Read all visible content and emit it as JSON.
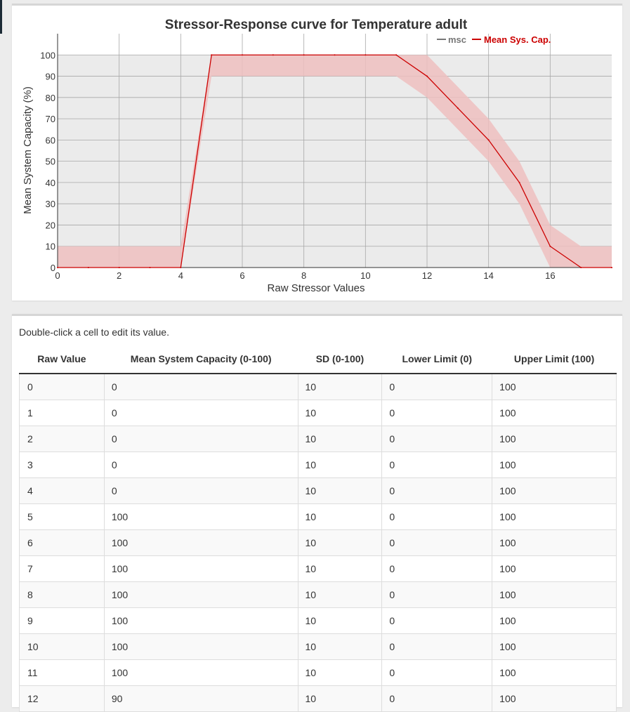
{
  "chart_data": {
    "type": "line",
    "title": "Stressor-Response curve for Temperature adult",
    "xlabel": "Raw Stressor Values",
    "ylabel": "Mean System Capacity (%)",
    "xlim": [
      0,
      18
    ],
    "ylim": [
      0,
      110
    ],
    "x_ticks": [
      0,
      2,
      4,
      6,
      8,
      10,
      12,
      14,
      16
    ],
    "y_ticks": [
      0,
      10,
      20,
      30,
      40,
      50,
      60,
      70,
      80,
      90,
      100
    ],
    "shaded_region_y": [
      0,
      100
    ],
    "grid": true,
    "legend_placement": "top-right",
    "legend": [
      {
        "name": "msc",
        "color": "#777777"
      },
      {
        "name": "Mean Sys. Cap.",
        "color": "#cc0000"
      }
    ],
    "series": [
      {
        "name": "Mean Sys. Cap.",
        "color": "#cc0000",
        "x": [
          0,
          1,
          2,
          3,
          4,
          5,
          6,
          7,
          8,
          9,
          10,
          11,
          12,
          13,
          14,
          15,
          16,
          17,
          18
        ],
        "values": [
          0,
          0,
          0,
          0,
          0,
          100,
          100,
          100,
          100,
          100,
          100,
          100,
          90,
          75,
          60,
          40,
          10,
          0,
          0
        ],
        "band_lower": [
          0,
          0,
          0,
          0,
          0,
          90,
          90,
          90,
          90,
          90,
          90,
          90,
          80,
          65,
          50,
          30,
          0,
          0,
          0
        ],
        "band_upper": [
          10,
          10,
          10,
          10,
          10,
          100,
          100,
          100,
          100,
          100,
          100,
          100,
          100,
          85,
          70,
          50,
          20,
          10,
          10
        ]
      }
    ]
  },
  "table": {
    "hint": "Double-click a cell to edit its value.",
    "columns": [
      "Raw Value",
      "Mean System Capacity (0-100)",
      "SD (0-100)",
      "Lower Limit (0)",
      "Upper Limit (100)"
    ],
    "rows": [
      [
        "0",
        "0",
        "10",
        "0",
        "100"
      ],
      [
        "1",
        "0",
        "10",
        "0",
        "100"
      ],
      [
        "2",
        "0",
        "10",
        "0",
        "100"
      ],
      [
        "3",
        "0",
        "10",
        "0",
        "100"
      ],
      [
        "4",
        "0",
        "10",
        "0",
        "100"
      ],
      [
        "5",
        "100",
        "10",
        "0",
        "100"
      ],
      [
        "6",
        "100",
        "10",
        "0",
        "100"
      ],
      [
        "7",
        "100",
        "10",
        "0",
        "100"
      ],
      [
        "8",
        "100",
        "10",
        "0",
        "100"
      ],
      [
        "9",
        "100",
        "10",
        "0",
        "100"
      ],
      [
        "10",
        "100",
        "10",
        "0",
        "100"
      ],
      [
        "11",
        "100",
        "10",
        "0",
        "100"
      ],
      [
        "12",
        "90",
        "10",
        "0",
        "100"
      ]
    ]
  },
  "colors": {
    "line": "#cc0000",
    "band": "#efc0c0",
    "plot_area": "#ebebeb",
    "legend_msc": "#777777"
  }
}
